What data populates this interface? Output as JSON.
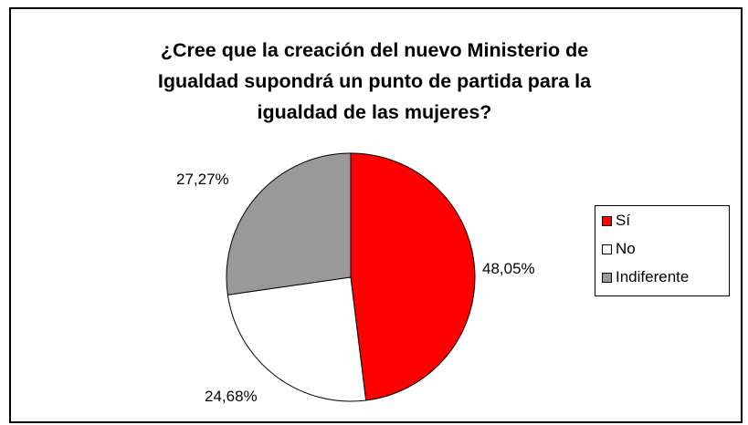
{
  "chart_data": {
    "type": "pie",
    "title_lines": [
      "¿Cree que la creación del nuevo Ministerio de",
      "Igualdad supondrá un punto de partida para la",
      "igualdad de las mujeres?"
    ],
    "categories": [
      "Sí",
      "No",
      "Indiferente"
    ],
    "values": [
      48.05,
      24.68,
      27.27
    ],
    "data_labels": [
      "48,05%",
      "24,68%",
      "27,27%"
    ],
    "colors": [
      "#ff0000",
      "#ffffff",
      "#999999"
    ],
    "legend_position": "right",
    "start_angle": "12 o'clock",
    "direction": "clockwise"
  }
}
